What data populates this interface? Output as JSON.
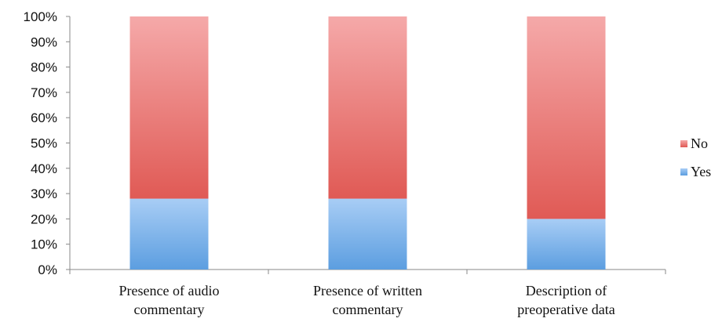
{
  "chart_data": {
    "type": "bar",
    "stacked": true,
    "percent_stacked": true,
    "categories": [
      [
        "Presence of audio",
        "commentary"
      ],
      [
        "Presence of written",
        "commentary"
      ],
      [
        "Description of",
        "preoperative data"
      ]
    ],
    "series": [
      {
        "name": "Yes",
        "values": [
          28,
          28,
          20
        ],
        "color_top": "#a8cdf5",
        "color_bottom": "#5c9ee0"
      },
      {
        "name": "No",
        "values": [
          72,
          72,
          80
        ],
        "color_top": "#f5a9a9",
        "color_bottom": "#e05a55"
      }
    ],
    "ylim": [
      0,
      100
    ],
    "yticks": [
      "0%",
      "10%",
      "20%",
      "30%",
      "40%",
      "50%",
      "60%",
      "70%",
      "80%",
      "90%",
      "100%"
    ],
    "title": "",
    "xlabel": "",
    "ylabel": "",
    "grid": false,
    "legend_position": "right"
  }
}
